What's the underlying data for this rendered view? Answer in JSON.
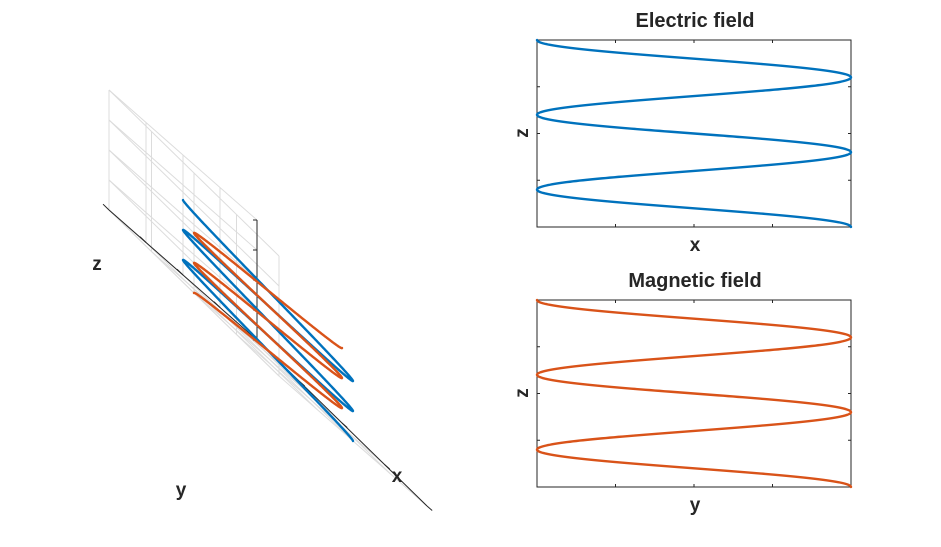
{
  "chart_data": [
    {
      "type": "line",
      "view": "3d",
      "xlabel": "x",
      "ylabel": "y",
      "zlabel": "z",
      "xlim": [
        -1,
        1
      ],
      "ylim": [
        -1,
        1
      ],
      "zlim": [
        0,
        4
      ],
      "grid": true,
      "series": [
        {
          "color": "#0072BD",
          "parametric": {
            "x": "cos(2*pi*t)",
            "y": "0",
            "z": "t"
          },
          "t_range": [
            0,
            2.5
          ]
        },
        {
          "color": "#D95319",
          "parametric": {
            "x": "0",
            "y": "cos(2*pi*t)",
            "z": "t"
          },
          "t_range": [
            0,
            2.5
          ]
        }
      ]
    },
    {
      "type": "line",
      "title": "Electric field",
      "xlabel": "x",
      "ylabel": "z",
      "xlim": [
        -1,
        1
      ],
      "ylim": [
        0,
        2.5
      ],
      "series": [
        {
          "color": "#0072BD",
          "x": "cos(2*pi*z)",
          "y": "z",
          "z_range": [
            0,
            2.5
          ]
        }
      ]
    },
    {
      "type": "line",
      "title": "Magnetic field",
      "xlabel": "y",
      "ylabel": "z",
      "xlim": [
        -1,
        1
      ],
      "ylim": [
        0,
        2.5
      ],
      "series": [
        {
          "color": "#D95319",
          "x": "cos(2*pi*z)",
          "y": "z",
          "z_range": [
            0,
            2.5
          ]
        }
      ]
    }
  ]
}
